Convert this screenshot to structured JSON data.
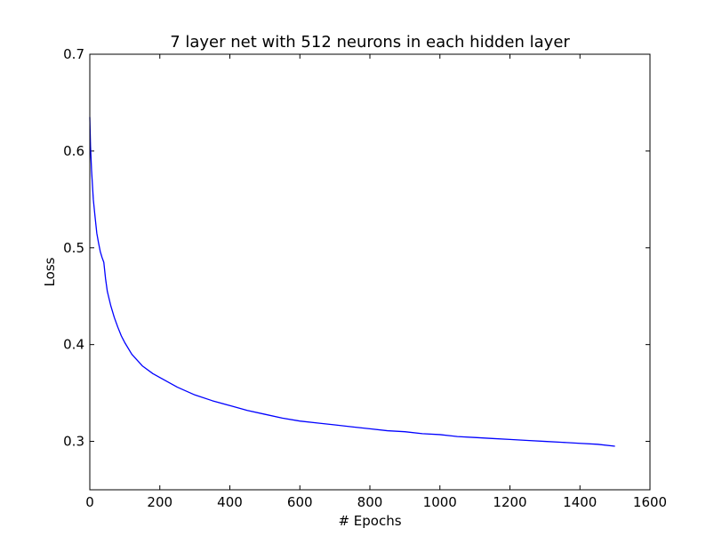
{
  "chart_data": {
    "type": "line",
    "title": "7 layer net with 512 neurons in each hidden layer",
    "xlabel": "# Epochs",
    "ylabel": "Loss",
    "xlim": [
      0,
      1600
    ],
    "ylim": [
      0.25,
      0.7
    ],
    "xticks": [
      0,
      200,
      400,
      600,
      800,
      1000,
      1200,
      1400,
      1600
    ],
    "yticks": [
      0.3,
      0.4,
      0.5,
      0.6,
      0.7
    ],
    "ytick_labels": [
      "0.3",
      "0.4",
      "0.5",
      "0.6",
      "0.7"
    ],
    "grid": false,
    "legend": "none",
    "series": [
      {
        "color": "#0000ff",
        "x": [
          0,
          2,
          5,
          10,
          15,
          20,
          25,
          30,
          35,
          40,
          45,
          50,
          60,
          70,
          80,
          90,
          100,
          120,
          150,
          180,
          200,
          250,
          300,
          350,
          400,
          450,
          500,
          550,
          600,
          650,
          700,
          750,
          800,
          850,
          900,
          950,
          1000,
          1050,
          1100,
          1150,
          1200,
          1250,
          1300,
          1350,
          1400,
          1450,
          1500
        ],
        "y": [
          0.635,
          0.605,
          0.58,
          0.55,
          0.532,
          0.515,
          0.505,
          0.496,
          0.49,
          0.485,
          0.468,
          0.455,
          0.44,
          0.428,
          0.418,
          0.409,
          0.402,
          0.39,
          0.378,
          0.37,
          0.366,
          0.356,
          0.348,
          0.342,
          0.337,
          0.332,
          0.328,
          0.324,
          0.321,
          0.319,
          0.317,
          0.315,
          0.313,
          0.311,
          0.31,
          0.308,
          0.307,
          0.305,
          0.304,
          0.303,
          0.302,
          0.301,
          0.3,
          0.299,
          0.298,
          0.297,
          0.295
        ]
      }
    ]
  }
}
